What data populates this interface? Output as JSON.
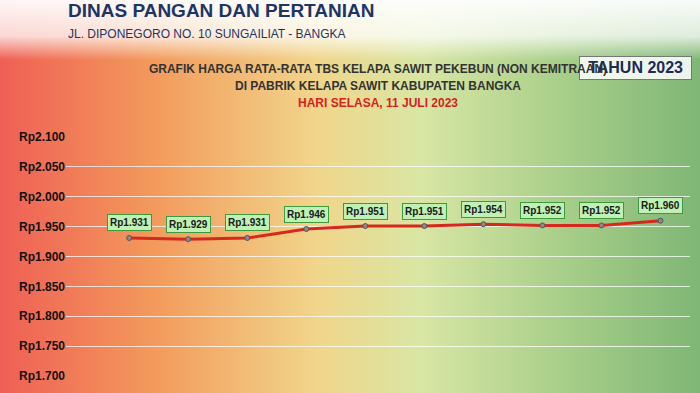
{
  "header": {
    "agency": "DINAS PANGAN DAN PERTANIAN",
    "address": "JL. DIPONEGORO NO. 10 SUNGAILIAT - BANGKA"
  },
  "chart_data": {
    "type": "line",
    "year": "TAHUN 2023",
    "title": "GRAFIK HARGA RATA-RATA TBS KELAPA SAWIT PEKEBUN (NON KEMITRAAN)",
    "subtitle": "DI PABRIK KELAPA SAWIT KABUPATEN BANGKA",
    "date": "HARI SELASA, 11 JULI 2023",
    "categories": [
      null,
      null,
      null,
      null,
      null,
      null,
      null,
      null,
      null,
      null
    ],
    "values": [
      1931,
      1929,
      1931,
      1946,
      1951,
      1951,
      1954,
      1952,
      1952,
      1960
    ],
    "value_labels": [
      "Rp1.931",
      "Rp1.929",
      "Rp1.931",
      "Rp1.946",
      "Rp1.951",
      "Rp1.951",
      "Rp1.954",
      "Rp1.952",
      "Rp1.952",
      "Rp1.960"
    ],
    "color": "#d42a1e",
    "marker": "circle",
    "ylim": [
      1700,
      2100
    ],
    "yticks": [
      {
        "value": 1700,
        "label": "Rp1.700"
      },
      {
        "value": 1750,
        "label": "Rp1.750"
      },
      {
        "value": 1800,
        "label": "Rp1.800"
      },
      {
        "value": 1850,
        "label": "Rp1.850"
      },
      {
        "value": 1900,
        "label": "Rp1.900"
      },
      {
        "value": 1950,
        "label": "Rp1.950"
      },
      {
        "value": 2000,
        "label": "Rp2.000"
      },
      {
        "value": 2050,
        "label": "Rp2.050"
      },
      {
        "value": 2100,
        "label": "Rp2.100"
      }
    ],
    "grid": true,
    "data_labels": true,
    "tick_labels": "y"
  }
}
